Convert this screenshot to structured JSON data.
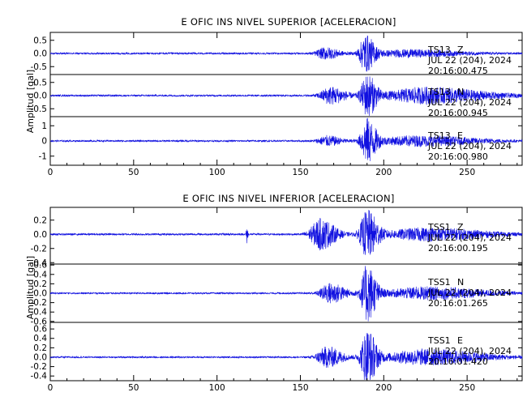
{
  "chart_data": [
    {
      "type": "line",
      "title": "E OFIC INS NIVEL SUPERIOR [ACELERACION]",
      "ylabel": "Amplitud [gal]",
      "xlim": [
        0,
        283
      ],
      "x_ticks": [
        "0",
        "50",
        "100",
        "150",
        "200",
        "250"
      ],
      "x_tick_values": [
        0,
        50,
        100,
        150,
        200,
        250
      ],
      "line_color": "#1010e0",
      "channels": [
        {
          "ylim": [
            -0.8,
            0.8
          ],
          "y_ticks": [
            "0.5",
            "0.0",
            "-0.5"
          ],
          "y_tick_values": [
            0.5,
            0.0,
            -0.5
          ],
          "station": "TS13",
          "component": "Z",
          "date": "JUL 22 (204), 2024",
          "time": "20:16:00.475",
          "signal": {
            "noise": 0.03,
            "events": [
              {
                "t": 165,
                "a": 0.2,
                "w": 9
              },
              {
                "t": 189,
                "a": 0.62,
                "w": 6
              },
              {
                "t": 215,
                "a": 0.12,
                "w": 35
              }
            ]
          }
        },
        {
          "ylim": [
            -0.8,
            0.8
          ],
          "y_ticks": [
            "0.5",
            "0.0",
            "-0.5"
          ],
          "y_tick_values": [
            0.5,
            0.0,
            -0.5
          ],
          "station": "TS13",
          "component": "N",
          "date": "JUL 22 (204), 2024",
          "time": "20:16:00.945",
          "signal": {
            "noise": 0.03,
            "events": [
              {
                "t": 168,
                "a": 0.3,
                "w": 10
              },
              {
                "t": 190,
                "a": 0.72,
                "w": 6
              },
              {
                "t": 225,
                "a": 0.28,
                "w": 40
              }
            ]
          }
        },
        {
          "ylim": [
            -1.6,
            1.6
          ],
          "y_ticks": [
            "1",
            "0",
            "-1"
          ],
          "y_tick_values": [
            1,
            0,
            -1
          ],
          "station": "TS13",
          "component": "E",
          "date": "JUL 22 (204), 2024",
          "time": "20:16:00.980",
          "signal": {
            "noise": 0.05,
            "events": [
              {
                "t": 166,
                "a": 0.3,
                "w": 9
              },
              {
                "t": 190,
                "a": 1.3,
                "w": 6
              },
              {
                "t": 220,
                "a": 0.3,
                "w": 40
              }
            ]
          }
        }
      ]
    },
    {
      "type": "line",
      "title": "E OFIC INS NIVEL INFERIOR [ACELERACION]",
      "ylabel": "Amplitud [gal]",
      "xlim": [
        0,
        283
      ],
      "x_ticks": [
        "0",
        "50",
        "100",
        "150",
        "200",
        "250"
      ],
      "x_tick_values": [
        0,
        50,
        100,
        150,
        200,
        250
      ],
      "line_color": "#1010e0",
      "channels": [
        {
          "ylim": [
            -0.42,
            0.38
          ],
          "y_ticks": [
            "0.2",
            "0.0",
            "-0.2",
            "-0.4"
          ],
          "y_tick_values": [
            0.2,
            0.0,
            -0.2,
            -0.4
          ],
          "station": "TSS1",
          "component": "Z",
          "date": "JUL 22 (204), 2024",
          "time": "20:16:00.195",
          "signal": {
            "noise": 0.012,
            "events": [
              {
                "t": 118,
                "a": 0.12,
                "w": 0.6
              },
              {
                "t": 162,
                "a": 0.2,
                "w": 10
              },
              {
                "t": 190,
                "a": 0.3,
                "w": 7
              },
              {
                "t": 225,
                "a": 0.08,
                "w": 40
              }
            ]
          }
        },
        {
          "ylim": [
            -0.62,
            0.62
          ],
          "y_ticks": [
            "0.6",
            "0.4",
            "0.2",
            "0.0",
            "-0.2",
            "-0.4",
            "-0.6"
          ],
          "y_tick_values": [
            0.6,
            0.4,
            0.2,
            0.0,
            -0.2,
            -0.4,
            -0.6
          ],
          "station": "TSS1",
          "component": "N",
          "date": "JUL 22 (204), 2024",
          "time": "20:16:01.265",
          "signal": {
            "noise": 0.015,
            "events": [
              {
                "t": 168,
                "a": 0.2,
                "w": 10
              },
              {
                "t": 190,
                "a": 0.55,
                "w": 6
              },
              {
                "t": 225,
                "a": 0.12,
                "w": 40
              }
            ]
          }
        },
        {
          "ylim": [
            -0.5,
            0.74
          ],
          "y_ticks": [
            "0.6",
            "0.4",
            "0.2",
            "0.0",
            "-0.2",
            "-0.4"
          ],
          "y_tick_values": [
            0.6,
            0.4,
            0.2,
            0.0,
            -0.2,
            -0.4
          ],
          "station": "TSS1",
          "component": "E",
          "date": "JUL 22 (204), 2024",
          "time": "20:16:01.420",
          "signal": {
            "noise": 0.015,
            "events": [
              {
                "t": 166,
                "a": 0.2,
                "w": 10
              },
              {
                "t": 190,
                "a": 0.55,
                "w": 6
              },
              {
                "t": 225,
                "a": 0.15,
                "w": 40
              }
            ]
          }
        }
      ]
    }
  ]
}
